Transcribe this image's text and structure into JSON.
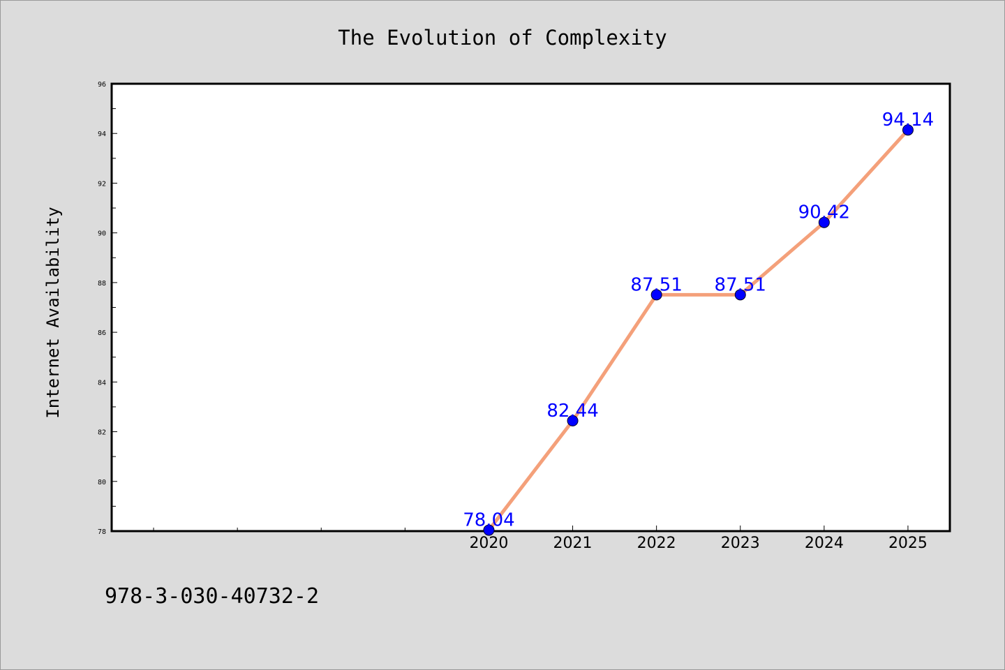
{
  "chart_data": {
    "type": "line",
    "title": "The Evolution of Complexity",
    "xlabel": "",
    "ylabel": "Internet Availability",
    "x": [
      "2020",
      "2021",
      "2022",
      "2023",
      "2024",
      "2025"
    ],
    "series": [
      {
        "values": [
          78.04,
          82.44,
          87.51,
          87.51,
          90.42,
          94.14
        ]
      }
    ],
    "data_labels": [
      "78.04",
      "82.44",
      "87.51",
      "87.51",
      "90.42",
      "94.14"
    ],
    "xlim": [
      2015.5,
      2025.5
    ],
    "ylim": [
      78,
      96
    ],
    "yticks": [
      "78",
      "80",
      "82",
      "84",
      "86",
      "88",
      "90",
      "92",
      "94",
      "96"
    ],
    "grid": false,
    "legend": "none",
    "colors": {
      "line": "#f4a07a",
      "marker": "#0000ff",
      "label": "#0000ff",
      "background": "#dcdcdc",
      "plot_area": "#ffffff"
    }
  },
  "footer": {
    "code": "978-3-030-40732-2"
  }
}
